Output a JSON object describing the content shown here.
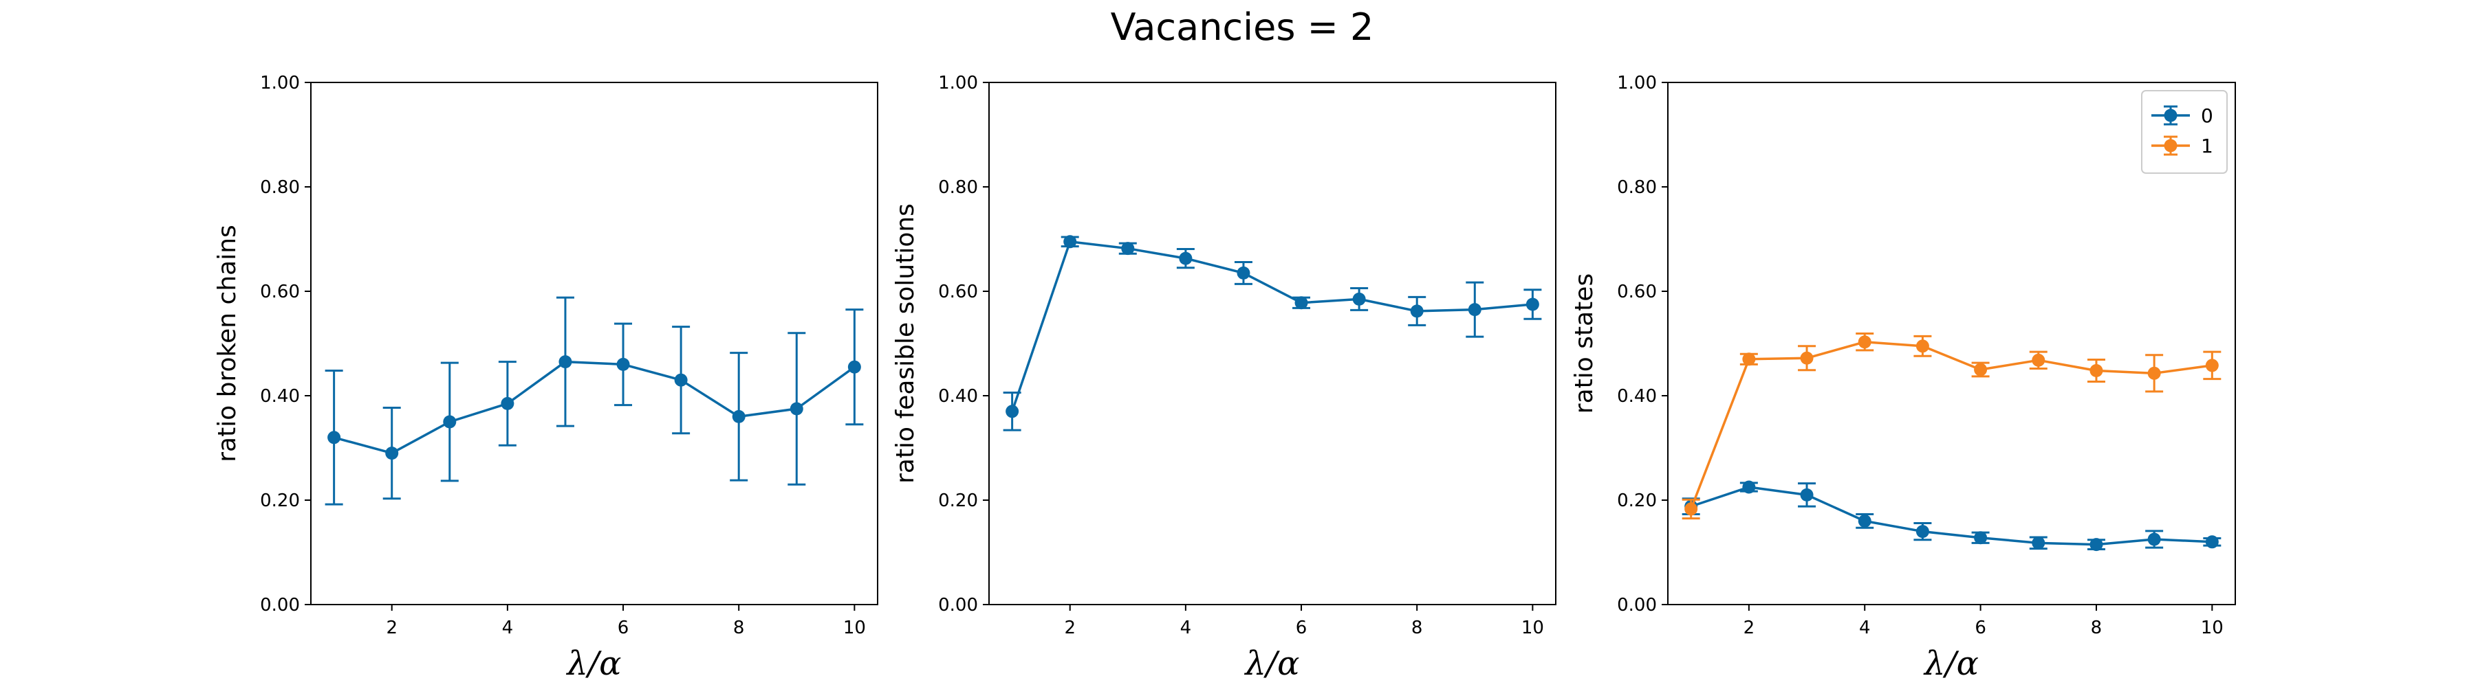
{
  "figure": {
    "title": "Vacancies = 2"
  },
  "colors": {
    "series0": "#0a6aa6",
    "series1": "#f5841f",
    "axis": "#000000"
  },
  "chart_data": [
    {
      "type": "line",
      "title": "",
      "xlabel": "λ/α",
      "ylabel": "ratio broken chains",
      "xlim": [
        0.6,
        10.4
      ],
      "ylim": [
        0,
        1
      ],
      "xticks": [
        2,
        4,
        6,
        8,
        10
      ],
      "yticks": [
        0,
        0.2,
        0.4,
        0.6,
        0.8,
        1.0
      ],
      "ytick_labels": [
        "0.00",
        "0.20",
        "0.40",
        "0.60",
        "0.80",
        "1.00"
      ],
      "grid": false,
      "legend": null,
      "x": [
        1,
        2,
        3,
        4,
        5,
        6,
        7,
        8,
        9,
        10
      ],
      "series": [
        {
          "name": "",
          "color": "#0a6aa6",
          "values": [
            0.32,
            0.29,
            0.35,
            0.385,
            0.465,
            0.46,
            0.43,
            0.36,
            0.375,
            0.455
          ],
          "errors": [
            0.128,
            0.087,
            0.113,
            0.08,
            0.123,
            0.078,
            0.102,
            0.122,
            0.145,
            0.11
          ]
        }
      ]
    },
    {
      "type": "line",
      "title": "",
      "xlabel": "λ/α",
      "ylabel": "ratio feasible solutions",
      "xlim": [
        0.6,
        10.4
      ],
      "ylim": [
        0,
        1
      ],
      "xticks": [
        2,
        4,
        6,
        8,
        10
      ],
      "yticks": [
        0,
        0.2,
        0.4,
        0.6,
        0.8,
        1.0
      ],
      "ytick_labels": [
        "0.00",
        "0.20",
        "0.40",
        "0.60",
        "0.80",
        "1.00"
      ],
      "grid": false,
      "legend": null,
      "x": [
        1,
        2,
        3,
        4,
        5,
        6,
        7,
        8,
        9,
        10
      ],
      "series": [
        {
          "name": "",
          "color": "#0a6aa6",
          "values": [
            0.37,
            0.695,
            0.682,
            0.663,
            0.635,
            0.578,
            0.585,
            0.562,
            0.565,
            0.575
          ],
          "errors": [
            0.036,
            0.009,
            0.01,
            0.018,
            0.021,
            0.01,
            0.021,
            0.027,
            0.052,
            0.028
          ]
        }
      ]
    },
    {
      "type": "line",
      "title": "",
      "xlabel": "λ/α",
      "ylabel": "ratio states",
      "xlim": [
        0.6,
        10.4
      ],
      "ylim": [
        0,
        1
      ],
      "xticks": [
        2,
        4,
        6,
        8,
        10
      ],
      "yticks": [
        0,
        0.2,
        0.4,
        0.6,
        0.8,
        1.0
      ],
      "ytick_labels": [
        "0.00",
        "0.20",
        "0.40",
        "0.60",
        "0.80",
        "1.00"
      ],
      "grid": false,
      "legend": "top-right",
      "x": [
        1,
        2,
        3,
        4,
        5,
        6,
        7,
        8,
        9,
        10
      ],
      "series": [
        {
          "name": "0",
          "color": "#0a6aa6",
          "values": [
            0.188,
            0.225,
            0.21,
            0.16,
            0.14,
            0.128,
            0.118,
            0.115,
            0.125,
            0.12
          ],
          "errors": [
            0.015,
            0.008,
            0.022,
            0.013,
            0.016,
            0.01,
            0.011,
            0.009,
            0.016,
            0.007
          ]
        },
        {
          "name": "1",
          "color": "#f5841f",
          "values": [
            0.183,
            0.47,
            0.472,
            0.503,
            0.495,
            0.45,
            0.468,
            0.448,
            0.443,
            0.458
          ],
          "errors": [
            0.018,
            0.01,
            0.023,
            0.016,
            0.019,
            0.013,
            0.016,
            0.021,
            0.035,
            0.026
          ]
        }
      ]
    }
  ]
}
